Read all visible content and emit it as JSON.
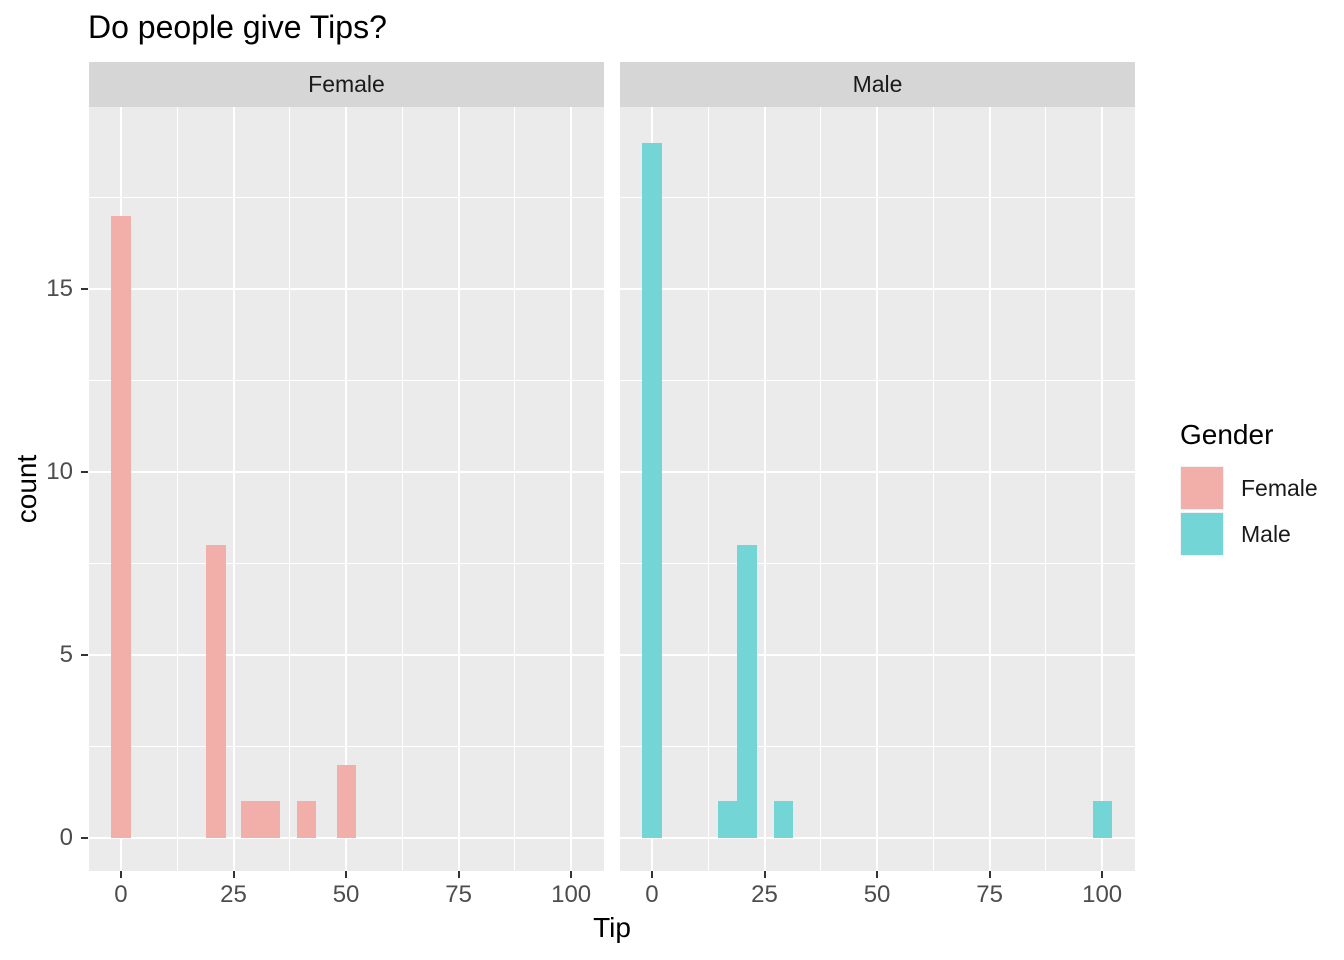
{
  "title": "Do people give Tips?",
  "axis": {
    "x_title": "Tip",
    "y_title": "count"
  },
  "legend": {
    "title": "Gender",
    "position": "right",
    "items": [
      {
        "label": "Female",
        "color": "#F2AEA9"
      },
      {
        "label": "Male",
        "color": "#73D5D6"
      }
    ]
  },
  "chart_data": {
    "type": "bar",
    "subtype": "faceted_histogram",
    "title": "Do people give Tips?",
    "xlabel": "Tip",
    "ylabel": "count",
    "facet_variable": "Gender",
    "legend_position": "right",
    "grid": true,
    "binwidth": 4.3,
    "x_ticks": [
      0,
      25,
      50,
      75,
      100
    ],
    "y_ticks": [
      0,
      5,
      10,
      15
    ],
    "x_minor_ticks": [
      12.5,
      37.5,
      62.5,
      87.5
    ],
    "y_minor_ticks": [
      2.5,
      7.5,
      12.5,
      17.5
    ],
    "xlim": [
      -7.1,
      107.3
    ],
    "ylim": [
      -0.9,
      19.97
    ],
    "colors": {
      "panel_bg": "#EBEBEB",
      "strip_bg": "#D6D6D6",
      "grid": "#FFFFFF",
      "tick_text": "#4D4D4D",
      "tick_mark": "#333333",
      "female": "#F2AEA9",
      "male": "#73D5D6"
    },
    "facets": [
      {
        "label": "Female",
        "color": "#F2AEA9",
        "bars": [
          {
            "x0": -2.15,
            "x1": 2.15,
            "count": 17
          },
          {
            "x0": 19.0,
            "x1": 23.3,
            "count": 8
          },
          {
            "x0": 26.7,
            "x1": 31.0,
            "count": 1
          },
          {
            "x0": 31.0,
            "x1": 35.4,
            "count": 1
          },
          {
            "x0": 39.0,
            "x1": 43.3,
            "count": 1
          },
          {
            "x0": 47.9,
            "x1": 52.2,
            "count": 2
          }
        ]
      },
      {
        "label": "Male",
        "color": "#73D5D6",
        "bars": [
          {
            "x0": -2.15,
            "x1": 2.15,
            "count": 19
          },
          {
            "x0": 14.7,
            "x1": 19.0,
            "count": 1
          },
          {
            "x0": 19.0,
            "x1": 23.3,
            "count": 8
          },
          {
            "x0": 27.1,
            "x1": 31.4,
            "count": 1
          },
          {
            "x0": 97.9,
            "x1": 102.2,
            "count": 1
          }
        ]
      }
    ]
  }
}
